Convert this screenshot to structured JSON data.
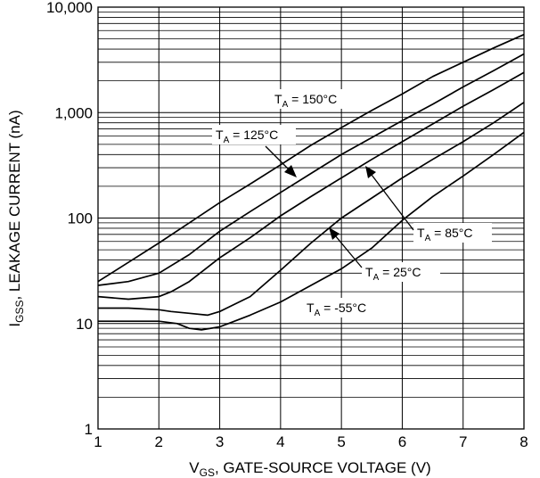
{
  "chart_data": {
    "type": "line",
    "title": "",
    "xlabel": {
      "main": "V",
      "sub": "GS",
      "rest": ", GATE-SOURCE VOLTAGE (V)"
    },
    "ylabel": {
      "main": "I",
      "sub": "GSS",
      "rest": ", LEAKAGE CURRENT (nA)"
    },
    "xlim": [
      1,
      8
    ],
    "ylim": [
      1,
      10000
    ],
    "yscale": "log",
    "grid": true,
    "x_ticks": [
      {
        "value": 1,
        "label": "1"
      },
      {
        "value": 2,
        "label": "2"
      },
      {
        "value": 3,
        "label": "3"
      },
      {
        "value": 4,
        "label": "4"
      },
      {
        "value": 5,
        "label": "5"
      },
      {
        "value": 6,
        "label": "6"
      },
      {
        "value": 7,
        "label": "7"
      },
      {
        "value": 8,
        "label": "8"
      }
    ],
    "y_ticks": [
      {
        "value": 1,
        "label": "1"
      },
      {
        "value": 10,
        "label": "10"
      },
      {
        "value": 100,
        "label": "100"
      },
      {
        "value": 1000,
        "label": "1,000"
      },
      {
        "value": 10000,
        "label": "10,000"
      }
    ],
    "series": [
      {
        "name": "TA = 150°C",
        "x": [
          1,
          1.5,
          2,
          2.5,
          3,
          3.5,
          4,
          4.5,
          5,
          5.5,
          6,
          6.5,
          7,
          7.5,
          8
        ],
        "values": [
          25,
          38,
          58,
          90,
          140,
          210,
          320,
          490,
          720,
          1050,
          1500,
          2200,
          3000,
          4100,
          5500
        ]
      },
      {
        "name": "TA = 125°C",
        "x": [
          1,
          1.5,
          2,
          2.5,
          3,
          3.5,
          4,
          4.5,
          5,
          5.5,
          6,
          6.5,
          7,
          7.5,
          8
        ],
        "values": [
          23,
          25,
          30,
          45,
          75,
          115,
          175,
          265,
          400,
          580,
          840,
          1200,
          1750,
          2500,
          3600
        ]
      },
      {
        "name": "TA = 85°C",
        "x": [
          1,
          1.5,
          2,
          2.2,
          2.5,
          3,
          3.5,
          4,
          4.5,
          5,
          5.5,
          6,
          6.5,
          7,
          7.5,
          8
        ],
        "values": [
          18,
          17,
          18,
          20,
          25,
          42,
          65,
          105,
          160,
          240,
          360,
          530,
          780,
          1150,
          1650,
          2400
        ]
      },
      {
        "name": "TA = 25°C",
        "x": [
          1,
          1.5,
          2,
          2.2,
          2.5,
          2.8,
          3,
          3.5,
          4,
          4.5,
          5,
          5.5,
          6,
          6.5,
          7,
          7.5,
          8
        ],
        "values": [
          14,
          14,
          13.5,
          13,
          12.5,
          12,
          13,
          18,
          32,
          58,
          100,
          155,
          240,
          360,
          530,
          800,
          1250
        ]
      },
      {
        "name": "TA = -55°C",
        "x": [
          1,
          1.5,
          2,
          2.3,
          2.5,
          2.7,
          3,
          3.5,
          4,
          4.5,
          5,
          5.5,
          6,
          6.5,
          7,
          7.5,
          8
        ],
        "values": [
          10.5,
          10.5,
          10.5,
          10,
          9,
          8.7,
          9.3,
          12,
          16,
          23,
          33,
          52,
          95,
          160,
          250,
          400,
          650
        ]
      }
    ],
    "annotations": [
      {
        "main": "T",
        "sub": "A",
        "rest": " = 150°C"
      },
      {
        "main": "T",
        "sub": "A",
        "rest": " = 125°C"
      },
      {
        "main": "T",
        "sub": "A",
        "rest": " = 85°C"
      },
      {
        "main": "T",
        "sub": "A",
        "rest": " = 25°C"
      },
      {
        "main": "T",
        "sub": "A",
        "rest": " = -55°C"
      }
    ]
  }
}
